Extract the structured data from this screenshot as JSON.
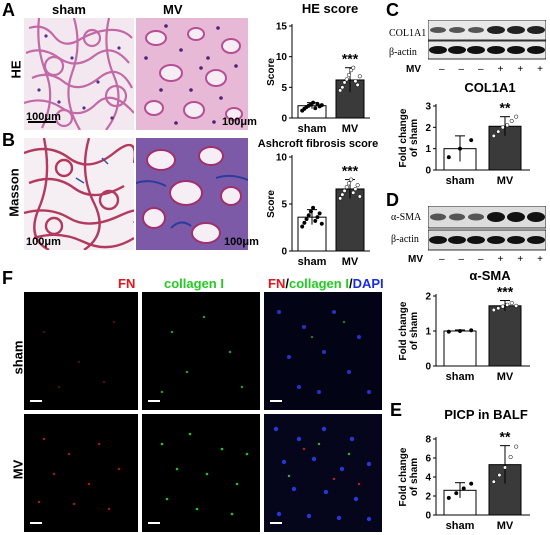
{
  "panels": {
    "A": "A",
    "B": "B",
    "C": "C",
    "D": "D",
    "E": "E",
    "F": "F"
  },
  "histology": {
    "col_sham": "sham",
    "col_mv": "MV",
    "row_he": "HE",
    "row_masson": "Masson",
    "scale_label": "100μm"
  },
  "wb_c": {
    "labels": [
      "COL1A1",
      "β-actin"
    ],
    "mv_label": "MV",
    "mv_signs": [
      "–",
      "–",
      "–",
      "+",
      "+",
      "+"
    ]
  },
  "wb_d": {
    "labels": [
      "α-SMA",
      "β-actin"
    ],
    "mv_label": "MV",
    "mv_signs": [
      "–",
      "–",
      "–",
      "+",
      "+",
      "+"
    ]
  },
  "fluorescence": {
    "headers": [
      {
        "text": "FN",
        "color": "#e8141b"
      },
      {
        "text": "collagen I",
        "color": "#22cc22"
      },
      {
        "parts": [
          {
            "text": "FN",
            "color": "#e8141b"
          },
          {
            "text": "/",
            "color": "#000000"
          },
          {
            "text": "collagen I",
            "color": "#22cc22"
          },
          {
            "text": "/",
            "color": "#000000"
          },
          {
            "text": "DAPI",
            "color": "#1a2ee0"
          }
        ]
      }
    ],
    "row_sham": "sham",
    "row_mv": "MV"
  },
  "chart_data": [
    {
      "id": "he-score",
      "type": "bar",
      "title": "HE score",
      "ylabel": "Score",
      "categories": [
        "sham",
        "MV"
      ],
      "values": [
        2.0,
        6.2
      ],
      "errors": [
        0.5,
        2.0
      ],
      "ylim": [
        0,
        15
      ],
      "yticks": [
        0,
        5,
        10,
        15
      ],
      "points": [
        [
          1.2,
          1.5,
          1.8,
          2.0,
          2.2,
          2.5,
          1.6,
          2.3,
          1.9,
          2.1
        ],
        [
          4.5,
          5.0,
          5.8,
          6.3,
          7.0,
          7.8,
          8.2,
          6.0,
          5.4,
          6.8
        ]
      ],
      "annotation": "***",
      "fills": [
        "#ffffff",
        "#3a3a3a"
      ]
    },
    {
      "id": "ashcroft-score",
      "type": "bar",
      "title": "Ashcroft fibrosis score",
      "ylabel": "Score",
      "categories": [
        "sham",
        "MV"
      ],
      "values": [
        3.6,
        6.6
      ],
      "errors": [
        0.8,
        1.0
      ],
      "ylim": [
        0,
        10
      ],
      "yticks": [
        0,
        5,
        10
      ],
      "points": [
        [
          2.6,
          3.0,
          3.4,
          3.8,
          4.2,
          4.6,
          3.2,
          3.6,
          4.0,
          2.9
        ],
        [
          5.6,
          6.0,
          6.4,
          6.8,
          7.2,
          7.6,
          6.2,
          6.6,
          7.0,
          5.8
        ]
      ],
      "annotation": "***",
      "fills": [
        "#ffffff",
        "#3a3a3a"
      ]
    },
    {
      "id": "col1a1-fold",
      "type": "bar",
      "title": "COL1A1",
      "ylabel": "Fold change of sham",
      "categories": [
        "sham",
        "MV"
      ],
      "values": [
        1.0,
        2.05
      ],
      "errors": [
        0.6,
        0.45
      ],
      "ylim": [
        0,
        3
      ],
      "yticks": [
        0,
        1,
        2,
        3
      ],
      "points": [
        [
          0.6,
          1.0,
          1.4
        ],
        [
          1.6,
          1.8,
          2.0,
          2.1,
          2.3,
          2.5
        ]
      ],
      "annotation": "**",
      "fills": [
        "#ffffff",
        "#3a3a3a"
      ]
    },
    {
      "id": "asma-fold",
      "type": "bar",
      "title": "α-SMA",
      "ylabel": "Fold change of sham",
      "categories": [
        "sham",
        "MV"
      ],
      "values": [
        1.0,
        1.72
      ],
      "errors": [
        0.03,
        0.15
      ],
      "ylim": [
        0,
        2
      ],
      "yticks": [
        0,
        1,
        2
      ],
      "points": [
        [
          0.98,
          1.0,
          1.02
        ],
        [
          1.6,
          1.65,
          1.7,
          1.75,
          1.8,
          1.72
        ]
      ],
      "annotation": "***",
      "fills": [
        "#ffffff",
        "#3a3a3a"
      ]
    },
    {
      "id": "picp-balf",
      "type": "bar",
      "title": "PICP in BALF",
      "ylabel": "Fold change of sham",
      "categories": [
        "sham",
        "MV"
      ],
      "values": [
        2.6,
        5.3
      ],
      "errors": [
        0.8,
        2.0
      ],
      "ylim": [
        0,
        8
      ],
      "yticks": [
        0,
        2,
        4,
        6,
        8
      ],
      "points": [
        [
          1.8,
          2.3,
          2.8,
          3.3
        ],
        [
          3.5,
          4.2,
          5.0,
          6.1,
          7.2
        ]
      ],
      "annotation": "**",
      "fills": [
        "#ffffff",
        "#3a3a3a"
      ]
    }
  ]
}
